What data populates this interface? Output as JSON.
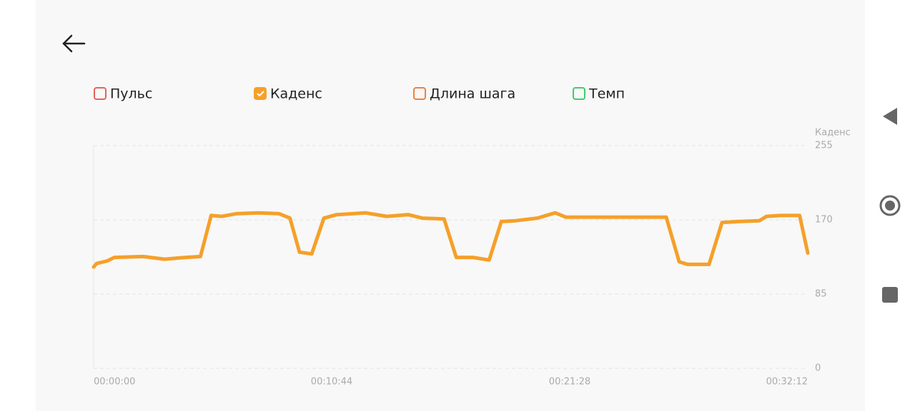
{
  "legend": [
    {
      "label": "Пульс",
      "color": "#e5635a",
      "checked": false
    },
    {
      "label": "Каденс",
      "color": "#f5a02a",
      "checked": true
    },
    {
      "label": "Длина шага",
      "color": "#f08040",
      "checked": false
    },
    {
      "label": "Темп",
      "color": "#3ccf6a",
      "checked": false
    }
  ],
  "chart_data": {
    "type": "line",
    "y_label": "Каденс",
    "color": "#f5a02a",
    "grid": true,
    "y_axis_side": "right",
    "x": [
      0,
      8,
      37,
      56,
      134,
      192,
      250,
      289,
      318,
      347,
      386,
      444,
      502,
      531,
      557,
      590,
      623,
      658,
      735,
      793,
      851,
      889,
      948,
      981,
      1026,
      1070,
      1103,
      1142,
      1200,
      1249,
      1278,
      1452,
      1549,
      1584,
      1607,
      1665,
      1700,
      1743,
      1801,
      1820,
      1859,
      1910,
      1932
    ],
    "values": [
      116,
      120,
      123,
      127,
      128,
      125,
      127,
      128,
      175,
      174,
      177,
      178,
      177,
      172,
      133,
      131,
      172,
      176,
      178,
      174,
      176,
      172,
      171,
      127,
      127,
      124,
      168,
      169,
      172,
      178,
      173,
      173,
      173,
      122,
      119,
      119,
      167,
      168,
      169,
      174,
      175,
      175,
      132
    ],
    "xlim": [
      0,
      1932
    ],
    "xticks": [
      {
        "value": 0,
        "label": "00:00:00"
      },
      {
        "value": 644,
        "label": "00:10:44"
      },
      {
        "value": 1288,
        "label": "00:21:28"
      },
      {
        "value": 1932,
        "label": "00:32:12"
      }
    ],
    "ylim": [
      0,
      255
    ],
    "yticks": [
      0,
      85,
      170,
      255
    ]
  }
}
